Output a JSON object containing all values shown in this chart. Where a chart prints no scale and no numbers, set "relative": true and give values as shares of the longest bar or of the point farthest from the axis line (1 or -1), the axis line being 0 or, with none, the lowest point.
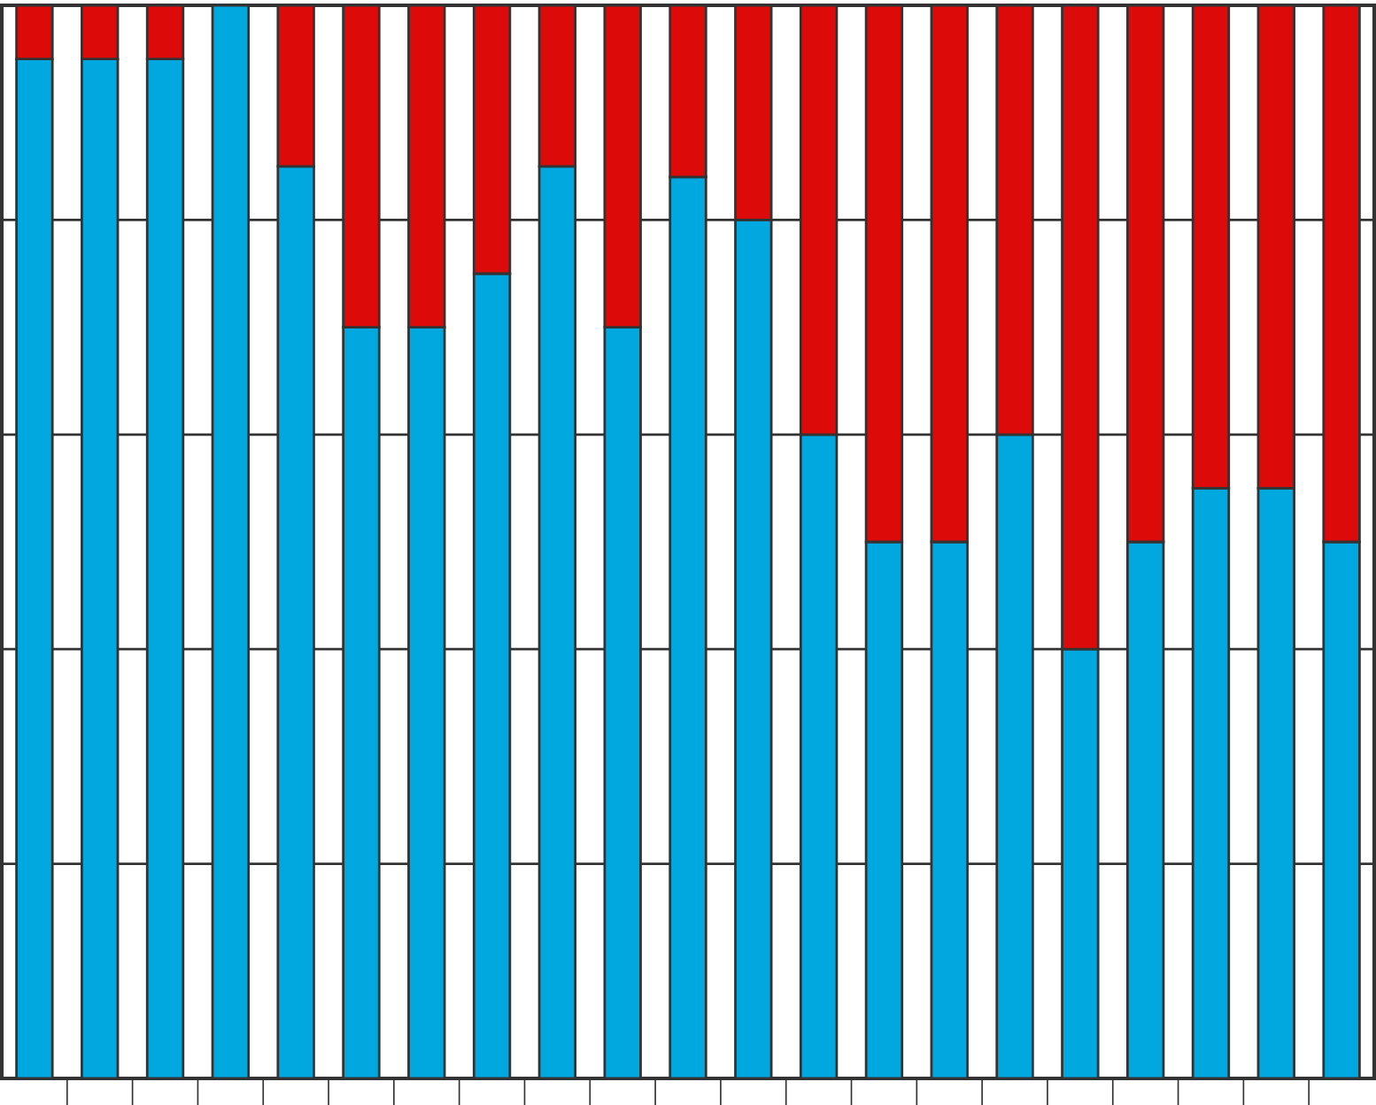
{
  "chart_data": {
    "type": "bar",
    "stacked": true,
    "relative": true,
    "grid": "y",
    "categories": [
      null,
      null,
      null,
      null,
      null,
      null,
      null,
      null,
      null,
      null,
      null,
      null,
      null,
      null,
      null,
      null,
      null,
      null,
      null,
      null,
      null
    ],
    "series": [
      {
        "color": "#00a8e0",
        "values": [
          0.95,
          0.95,
          0.95,
          1.0,
          0.85,
          0.7,
          0.7,
          0.75,
          0.85,
          0.7,
          0.84,
          0.8,
          0.6,
          0.5,
          0.5,
          0.6,
          0.4,
          0.5,
          0.55,
          0.55,
          0.5
        ]
      },
      {
        "color": "#dd0a0a",
        "values": [
          0.05,
          0.05,
          0.05,
          null,
          0.15,
          0.3,
          0.3,
          0.25,
          0.15,
          0.3,
          0.16,
          0.2,
          0.4,
          0.5,
          0.5,
          0.4,
          0.6,
          0.5,
          0.45,
          0.45,
          0.5
        ]
      }
    ]
  }
}
